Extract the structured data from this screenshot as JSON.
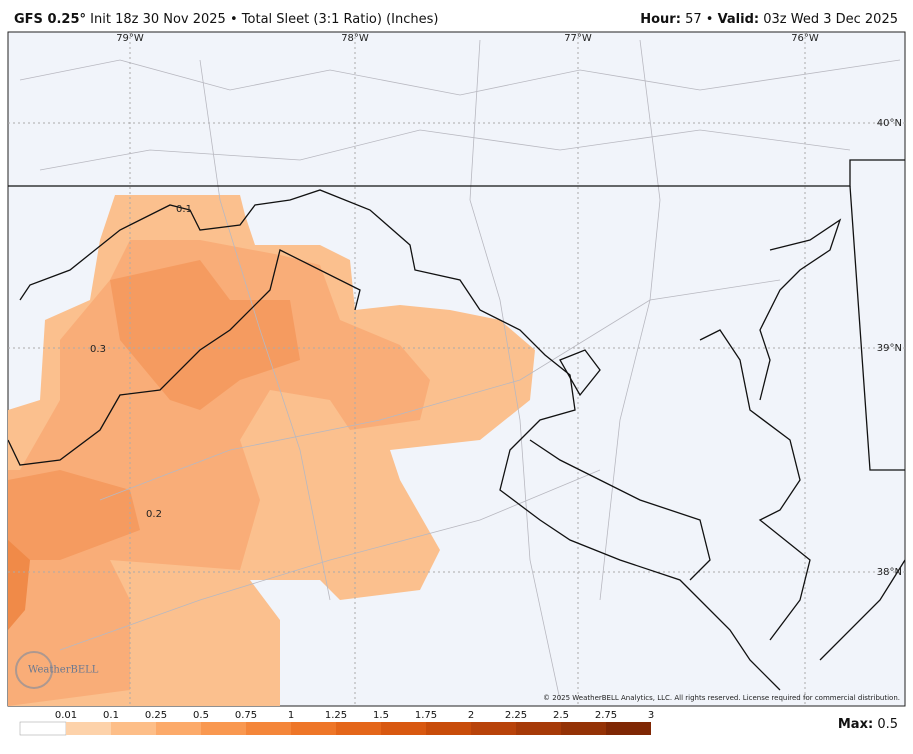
{
  "header": {
    "model": "GFS 0.25°",
    "init": "Init 18z 30 Nov 2025",
    "separator": "•",
    "product": "Total Sleet (3:1 Ratio) (Inches)",
    "hour_label": "Hour:",
    "hour": "57",
    "valid_label": "Valid:",
    "valid": "03z Wed 3 Dec 2025"
  },
  "map": {
    "lon_labels": [
      "79°W",
      "78°W",
      "77°W",
      "76°W"
    ],
    "lat_labels": [
      "40°N",
      "39°N",
      "38°N"
    ],
    "contour_labels": [
      "0.1",
      "0.3",
      "0.2"
    ],
    "logo": "WeatherBELL",
    "copyright": "© 2025 WeatherBELL Analytics, LLC. All rights reserved. License required for commercial distribution."
  },
  "legend": {
    "ticks": [
      "0.01",
      "0.1",
      "0.25",
      "0.5",
      "0.75",
      "1",
      "1.25",
      "1.5",
      "1.75",
      "2",
      "2.25",
      "2.5",
      "2.75",
      "3"
    ],
    "colors": [
      "#ffffff",
      "#fdd2aa",
      "#fdbe88",
      "#fcaa6a",
      "#f99850",
      "#f4863a",
      "#ee7628",
      "#e4661a",
      "#d85810",
      "#c84c0a",
      "#b8430a",
      "#a63a08",
      "#943206",
      "#7f2704"
    ],
    "max_label": "Max:",
    "max": "0.5"
  }
}
